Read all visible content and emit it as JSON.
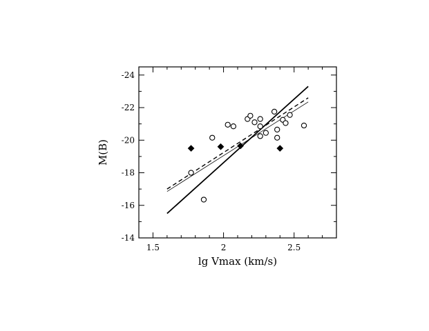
{
  "chart_data": {
    "type": "scatter",
    "title": "",
    "xlabel": "lg  Vmax  (km/s)",
    "ylabel": "M(B)",
    "xlim": [
      1.4,
      2.8
    ],
    "ylim": [
      -14,
      -24.5
    ],
    "y_inverted": true,
    "grid": false,
    "legend": "none",
    "x_ticks": [
      1.5,
      2,
      2.5
    ],
    "x_tick_labels": [
      "1.5",
      "2",
      "2.5"
    ],
    "y_ticks": [
      -24,
      -22,
      -20,
      -18,
      -16,
      -14
    ],
    "y_tick_labels": [
      "-24",
      "-22",
      "-20",
      "-18",
      "-16",
      "-14"
    ],
    "series": [
      {
        "marker": "open-circle",
        "points": [
          {
            "x": 1.77,
            "y": -18.0
          },
          {
            "x": 1.86,
            "y": -16.35
          },
          {
            "x": 1.92,
            "y": -20.15
          },
          {
            "x": 2.03,
            "y": -20.95
          },
          {
            "x": 2.07,
            "y": -20.85
          },
          {
            "x": 2.17,
            "y": -21.3
          },
          {
            "x": 2.19,
            "y": -21.5
          },
          {
            "x": 2.22,
            "y": -21.1
          },
          {
            "x": 2.26,
            "y": -20.85
          },
          {
            "x": 2.26,
            "y": -21.3
          },
          {
            "x": 2.26,
            "y": -20.25
          },
          {
            "x": 2.3,
            "y": -20.45
          },
          {
            "x": 2.36,
            "y": -21.75
          },
          {
            "x": 2.38,
            "y": -20.65
          },
          {
            "x": 2.38,
            "y": -20.15
          },
          {
            "x": 2.42,
            "y": -21.25
          },
          {
            "x": 2.44,
            "y": -21.05
          },
          {
            "x": 2.47,
            "y": -21.55
          },
          {
            "x": 2.57,
            "y": -20.9
          }
        ]
      },
      {
        "marker": "filled-diamond",
        "points": [
          {
            "x": 1.77,
            "y": -19.5
          },
          {
            "x": 1.98,
            "y": -19.6
          },
          {
            "x": 2.12,
            "y": -19.65
          },
          {
            "x": 2.4,
            "y": -19.5
          }
        ]
      }
    ],
    "lines": [
      {
        "style": "solid-thick",
        "x": [
          1.6,
          2.6
        ],
        "y": [
          -15.5,
          -23.3
        ]
      },
      {
        "style": "dashed",
        "x": [
          1.6,
          2.6
        ],
        "y": [
          -17.0,
          -22.6
        ]
      },
      {
        "style": "solid-thin",
        "x": [
          1.6,
          2.6
        ],
        "y": [
          -16.85,
          -22.35
        ]
      }
    ]
  }
}
